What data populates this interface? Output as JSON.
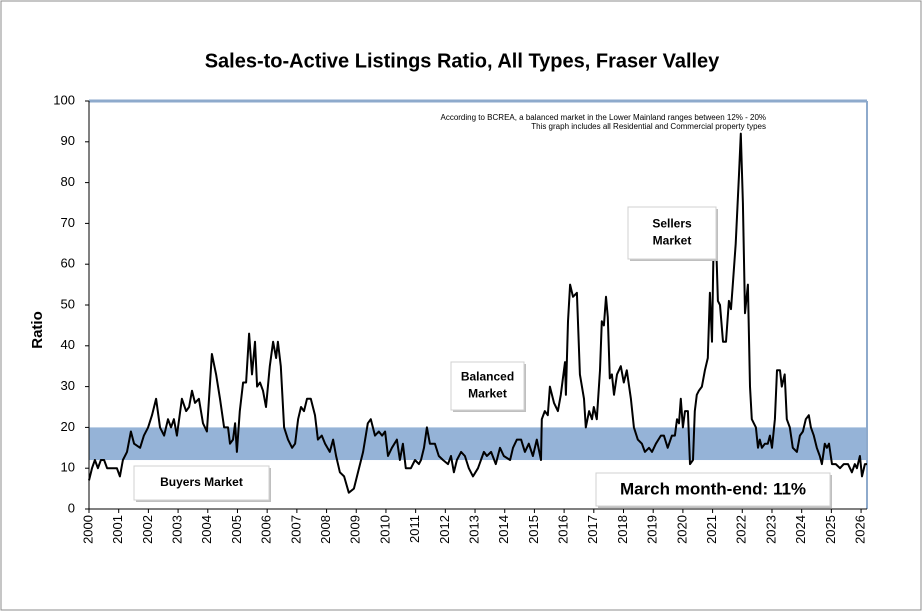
{
  "chart_data": {
    "type": "line",
    "title": "Sales-to-Active Listings Ratio, All Types, Fraser Valley",
    "y_label": "Ratio",
    "notes": [
      "According to BCREA, a balanced market in the Lower Mainland ranges between 12% - 20%",
      "This graph includes all Residential and Commercial property types"
    ],
    "annotations": [
      {
        "lines": [
          "Sellers",
          "Market"
        ]
      },
      {
        "lines": [
          "Balanced",
          "Market"
        ]
      },
      {
        "lines": [
          "Buyers Market"
        ]
      }
    ],
    "callout": "March month-end: 11%",
    "band": [
      12,
      20
    ],
    "band_color": "#95b3d7",
    "color": "#000000",
    "xlim": [
      2000,
      2026.2
    ],
    "xticks": [
      2000,
      2001,
      2002,
      2003,
      2004,
      2005,
      2006,
      2007,
      2008,
      2009,
      2010,
      2011,
      2012,
      2013,
      2014,
      2015,
      2016,
      2017,
      2018,
      2019,
      2020,
      2021,
      2022,
      2023,
      2024,
      2025,
      2026
    ],
    "ylim": [
      0,
      100
    ],
    "yticks": [
      0,
      10,
      20,
      30,
      40,
      50,
      60,
      70,
      80,
      90,
      100
    ],
    "grid": false,
    "x": [
      2000.0,
      2000.1,
      2000.2,
      2000.3,
      2000.4,
      2000.51,
      2000.61,
      2000.94,
      2001.04,
      2001.14,
      2001.28,
      2001.41,
      2001.52,
      2001.72,
      2001.85,
      2001.99,
      2002.12,
      2002.26,
      2002.39,
      2002.53,
      2002.66,
      2002.76,
      2002.86,
      2002.96,
      2003.13,
      2003.27,
      2003.37,
      2003.47,
      2003.57,
      2003.7,
      2003.84,
      2003.97,
      2004.14,
      2004.28,
      2004.41,
      2004.55,
      2004.68,
      2004.75,
      2004.85,
      2004.92,
      2004.98,
      2005.08,
      2005.19,
      2005.29,
      2005.39,
      2005.49,
      2005.59,
      2005.66,
      2005.76,
      2005.86,
      2005.96,
      2006.09,
      2006.2,
      2006.3,
      2006.36,
      2006.46,
      2006.57,
      2006.7,
      2006.84,
      2006.94,
      2007.04,
      2007.14,
      2007.24,
      2007.34,
      2007.47,
      2007.61,
      2007.71,
      2007.84,
      2007.95,
      2008.11,
      2008.22,
      2008.32,
      2008.45,
      2008.59,
      2008.75,
      2008.92,
      2009.06,
      2009.23,
      2009.39,
      2009.49,
      2009.63,
      2009.76,
      2009.87,
      2009.97,
      2010.07,
      2010.2,
      2010.37,
      2010.47,
      2010.57,
      2010.67,
      2010.84,
      2010.98,
      2011.11,
      2011.18,
      2011.28,
      2011.38,
      2011.48,
      2011.65,
      2011.78,
      2011.92,
      2012.09,
      2012.19,
      2012.29,
      2012.39,
      2012.53,
      2012.66,
      2012.79,
      2012.93,
      2013.1,
      2013.3,
      2013.4,
      2013.54,
      2013.7,
      2013.84,
      2013.97,
      2014.18,
      2014.28,
      2014.41,
      2014.55,
      2014.68,
      2014.81,
      2014.95,
      2015.08,
      2015.22,
      2015.25,
      2015.35,
      2015.45,
      2015.52,
      2015.66,
      2015.79,
      2015.89,
      2016.03,
      2016.06,
      2016.13,
      2016.2,
      2016.3,
      2016.43,
      2016.53,
      2016.67,
      2016.73,
      2016.84,
      2016.94,
      2017.0,
      2017.1,
      2017.21,
      2017.27,
      2017.34,
      2017.41,
      2017.47,
      2017.54,
      2017.61,
      2017.68,
      2017.78,
      2017.91,
      2018.01,
      2018.11,
      2018.25,
      2018.35,
      2018.48,
      2018.62,
      2018.72,
      2018.86,
      2018.96,
      2019.09,
      2019.26,
      2019.36,
      2019.49,
      2019.63,
      2019.73,
      2019.8,
      2019.87,
      2019.93,
      2020.0,
      2020.07,
      2020.17,
      2020.24,
      2020.34,
      2020.4,
      2020.47,
      2020.54,
      2020.64,
      2020.74,
      2020.84,
      2020.91,
      2020.98,
      2021.04,
      2021.11,
      2021.18,
      2021.25,
      2021.35,
      2021.45,
      2021.55,
      2021.62,
      2021.68,
      2021.78,
      2021.89,
      2021.95,
      2022.02,
      2022.09,
      2022.19,
      2022.26,
      2022.32,
      2022.46,
      2022.53,
      2022.59,
      2022.66,
      2022.76,
      2022.86,
      2022.93,
      2023.0,
      2023.1,
      2023.17,
      2023.27,
      2023.33,
      2023.43,
      2023.5,
      2023.6,
      2023.7,
      2023.84,
      2023.94,
      2024.04,
      2024.14,
      2024.24,
      2024.31,
      2024.41,
      2024.51,
      2024.61,
      2024.68,
      2024.78,
      2024.85,
      2024.92,
      2025.02,
      2025.15,
      2025.29,
      2025.42,
      2025.56,
      2025.69,
      2025.79,
      2025.86,
      2025.96,
      2026.03,
      2026.13,
      2026.2
    ],
    "values": [
      7,
      10,
      12,
      10,
      12,
      12,
      10,
      10,
      8,
      12,
      14,
      19,
      16,
      15,
      18,
      20,
      23,
      27,
      20,
      18,
      22,
      20,
      22,
      18,
      27,
      24,
      25,
      29,
      26,
      27,
      21,
      19,
      38,
      33,
      27,
      20,
      20,
      16,
      17,
      21,
      14,
      24,
      31,
      31,
      43,
      33,
      41,
      30,
      31,
      29,
      25,
      35,
      41,
      37,
      41,
      35,
      20,
      17,
      15,
      16,
      22,
      25,
      24,
      27,
      27,
      23,
      17,
      18,
      16,
      14,
      17,
      13,
      9,
      8,
      4,
      5,
      9,
      14,
      21,
      22,
      18,
      19,
      18,
      19,
      13,
      15,
      17,
      12,
      16,
      10,
      10,
      12,
      11,
      12,
      15,
      20,
      16,
      16,
      13,
      12,
      11,
      13,
      9,
      12,
      14,
      13,
      10,
      8,
      10,
      14,
      13,
      14,
      11,
      15,
      13,
      12,
      15,
      17,
      17,
      14,
      16,
      13,
      17,
      12,
      22,
      24,
      23,
      30,
      26,
      24,
      28,
      36,
      28,
      46,
      55,
      52,
      53,
      33,
      27,
      20,
      24,
      22,
      25,
      22,
      34,
      46,
      45,
      52,
      47,
      32,
      33,
      28,
      33,
      35,
      31,
      34,
      27,
      20,
      17,
      16,
      14,
      15,
      14,
      16,
      18,
      18,
      15,
      18,
      18,
      22,
      21,
      27,
      20,
      24,
      24,
      11,
      12,
      24,
      28,
      29,
      30,
      34,
      37,
      53,
      41,
      68,
      67,
      51,
      50,
      41,
      41,
      51,
      49,
      55,
      65,
      82,
      92,
      75,
      48,
      55,
      30,
      22,
      20,
      15,
      17,
      15,
      16,
      16,
      18,
      15,
      22,
      34,
      34,
      30,
      33,
      22,
      20,
      15,
      14,
      18,
      19,
      22,
      23,
      20,
      18,
      15,
      13,
      11,
      16,
      15,
      16,
      11,
      11,
      10,
      11,
      11,
      9,
      11,
      10,
      13,
      8,
      11,
      11
    ]
  }
}
